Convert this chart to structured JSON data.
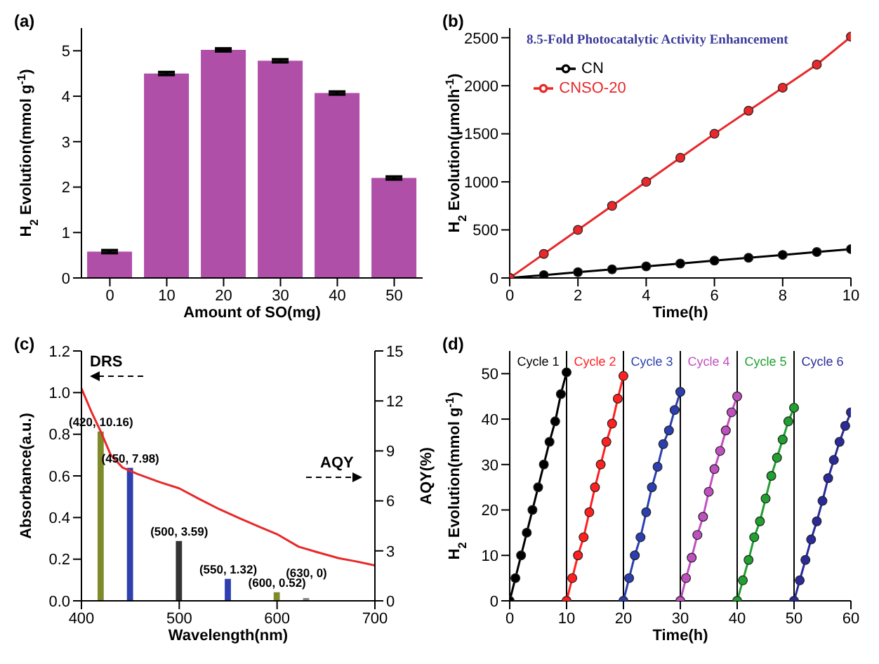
{
  "chart_data": [
    {
      "type": "bar",
      "title": "(a)",
      "xlabel": "Amount of SO(mg)",
      "ylabel": "H$_{2}$ Evolution(mmol g$^{-1}$)",
      "categories": [
        "0",
        "10",
        "20",
        "30",
        "40",
        "50"
      ],
      "values": [
        0.58,
        4.5,
        5.02,
        4.78,
        4.07,
        2.2
      ],
      "errors": [
        0.03,
        0.03,
        0.03,
        0.03,
        0.03,
        0.03
      ],
      "color": "#b04fa8",
      "ylim": [
        0,
        5.5
      ],
      "yticks": [
        0,
        1,
        2,
        3,
        4,
        5
      ]
    },
    {
      "type": "line",
      "title": "(b)",
      "xlabel": "Time(h)",
      "ylabel": "H$_{2}$ Evolution(μmolh$^{-1}$)",
      "annotations": [
        "8.5-Fold Photocatalytic Activity Enhancement"
      ],
      "x": [
        0,
        1,
        2,
        3,
        4,
        5,
        6,
        7,
        8,
        9,
        10
      ],
      "series": [
        {
          "name": "CN",
          "color": "#000000",
          "values": [
            0,
            30,
            60,
            90,
            120,
            150,
            180,
            210,
            240,
            270,
            300
          ]
        },
        {
          "name": "CNSO-20",
          "color": "#e8282a",
          "values": [
            0,
            250,
            500,
            750,
            1000,
            1250,
            1500,
            1740,
            1980,
            2220,
            2510
          ]
        }
      ],
      "xlim": [
        0,
        10
      ],
      "xticks": [
        0,
        2,
        4,
        6,
        8,
        10
      ],
      "ylim": [
        0,
        2600
      ],
      "yticks": [
        0,
        500,
        1000,
        1500,
        2000,
        2500
      ],
      "marker": "circle",
      "legend": "top left"
    },
    {
      "type": "line",
      "title": "(c)",
      "xlabel": "Wavelength(nm)",
      "ylabel": "Absorbance(a.u.)",
      "y2label": "AQY(%)",
      "annotations": [
        "DRS",
        "AQY"
      ],
      "series": [
        {
          "color": "#e8282a",
          "x": [
            400,
            410,
            420,
            430,
            442,
            457,
            480,
            500,
            520,
            541,
            560,
            582,
            600,
            622,
            640,
            663,
            680,
            700
          ],
          "values": [
            1.02,
            0.91,
            0.81,
            0.7,
            0.64,
            0.61,
            0.57,
            0.54,
            0.49,
            0.44,
            0.4,
            0.355,
            0.32,
            0.26,
            0.235,
            0.205,
            0.19,
            0.17
          ]
        },
        {
          "type": "bar",
          "axis": "y2",
          "x": [
            420,
            450,
            500,
            550,
            600,
            630
          ],
          "values": [
            10.16,
            7.98,
            3.59,
            1.32,
            0.52,
            0
          ],
          "colors": [
            "#7f8a2a",
            "#2e3fb0",
            "#333333",
            "#2e3fb0",
            "#7f8a2a",
            "#888888"
          ],
          "value_labels": [
            "(420, 10.16)",
            "(450, 7.98)",
            "(500, 3.59)",
            "(550, 1.32)",
            "(600, 0.52)",
            "(630, 0)"
          ]
        }
      ],
      "xlim": [
        400,
        700
      ],
      "xticks": [
        400,
        500,
        600,
        700
      ],
      "ylim": [
        0,
        1.2
      ],
      "yticks": [
        {
          "value": 0,
          "label": "0.0"
        },
        0.2,
        0.4,
        0.6,
        0.8,
        {
          "value": 1,
          "label": "1.0"
        },
        1.2
      ],
      "y2lim": [
        0,
        15
      ],
      "y2ticks": [
        0,
        3,
        6,
        9,
        12,
        15
      ]
    },
    {
      "type": "line",
      "title": "(d)",
      "xlabel": "Time(h)",
      "ylabel": "H$_{2}$ Evolution(mmol g$^{-1}$)",
      "marker": "circle",
      "xlim": [
        0,
        60
      ],
      "xticks": [
        0,
        10,
        20,
        30,
        40,
        50,
        60
      ],
      "ylim": [
        0,
        55
      ],
      "yticks": [
        0,
        10,
        20,
        30,
        40,
        50
      ],
      "series": [
        {
          "name": "Cycle 1",
          "color": "#000000",
          "x": [
            0,
            1,
            2,
            3,
            4,
            5,
            6,
            7,
            8,
            9,
            10
          ],
          "values": [
            0,
            5,
            10,
            15,
            20,
            25,
            30,
            35,
            39.5,
            45.5,
            50.3
          ]
        },
        {
          "name": "Cycle 2",
          "color": "#ff2020",
          "x": [
            10,
            11,
            12,
            13,
            14,
            15,
            16,
            17,
            18,
            19,
            20
          ],
          "values": [
            0,
            5,
            10,
            14,
            19.5,
            25,
            30,
            35,
            39,
            44.5,
            49.5
          ]
        },
        {
          "name": "Cycle 3",
          "color": "#2b3fb0",
          "x": [
            20,
            21,
            22,
            23,
            24,
            25,
            26,
            27,
            28,
            29,
            30
          ],
          "values": [
            0,
            5,
            10,
            14,
            19.5,
            25,
            29.5,
            34.5,
            37.5,
            42,
            46
          ]
        },
        {
          "name": "Cycle 4",
          "color": "#c050c0",
          "x": [
            30,
            31,
            32,
            33,
            34,
            35,
            36,
            37,
            38,
            39,
            40
          ],
          "values": [
            0,
            5,
            9.5,
            14.5,
            18.5,
            24,
            29,
            33,
            37.5,
            41.5,
            45
          ]
        },
        {
          "name": "Cycle 5",
          "color": "#20a030",
          "x": [
            40,
            41,
            42,
            43,
            44,
            45,
            46,
            47,
            48,
            49,
            50
          ],
          "values": [
            0,
            4.5,
            9,
            14,
            17.5,
            22.5,
            27.5,
            31.5,
            35.5,
            39.5,
            42.5
          ]
        },
        {
          "name": "Cycle 6",
          "color": "#2a2a9a",
          "x": [
            50,
            51,
            52,
            53,
            54,
            55,
            56,
            57,
            58,
            59,
            60
          ],
          "values": [
            0,
            4.5,
            9,
            13.5,
            17.5,
            22,
            27,
            31,
            35,
            38.5,
            41.5
          ]
        }
      ],
      "ref_lines": [
        {
          "axis": "x",
          "value": 10,
          "color": "#000000"
        },
        {
          "axis": "x",
          "value": 20,
          "color": "#000000"
        },
        {
          "axis": "x",
          "value": 30,
          "color": "#000000"
        },
        {
          "axis": "x",
          "value": 40,
          "color": "#000000"
        },
        {
          "axis": "x",
          "value": 50,
          "color": "#000000"
        }
      ]
    }
  ]
}
